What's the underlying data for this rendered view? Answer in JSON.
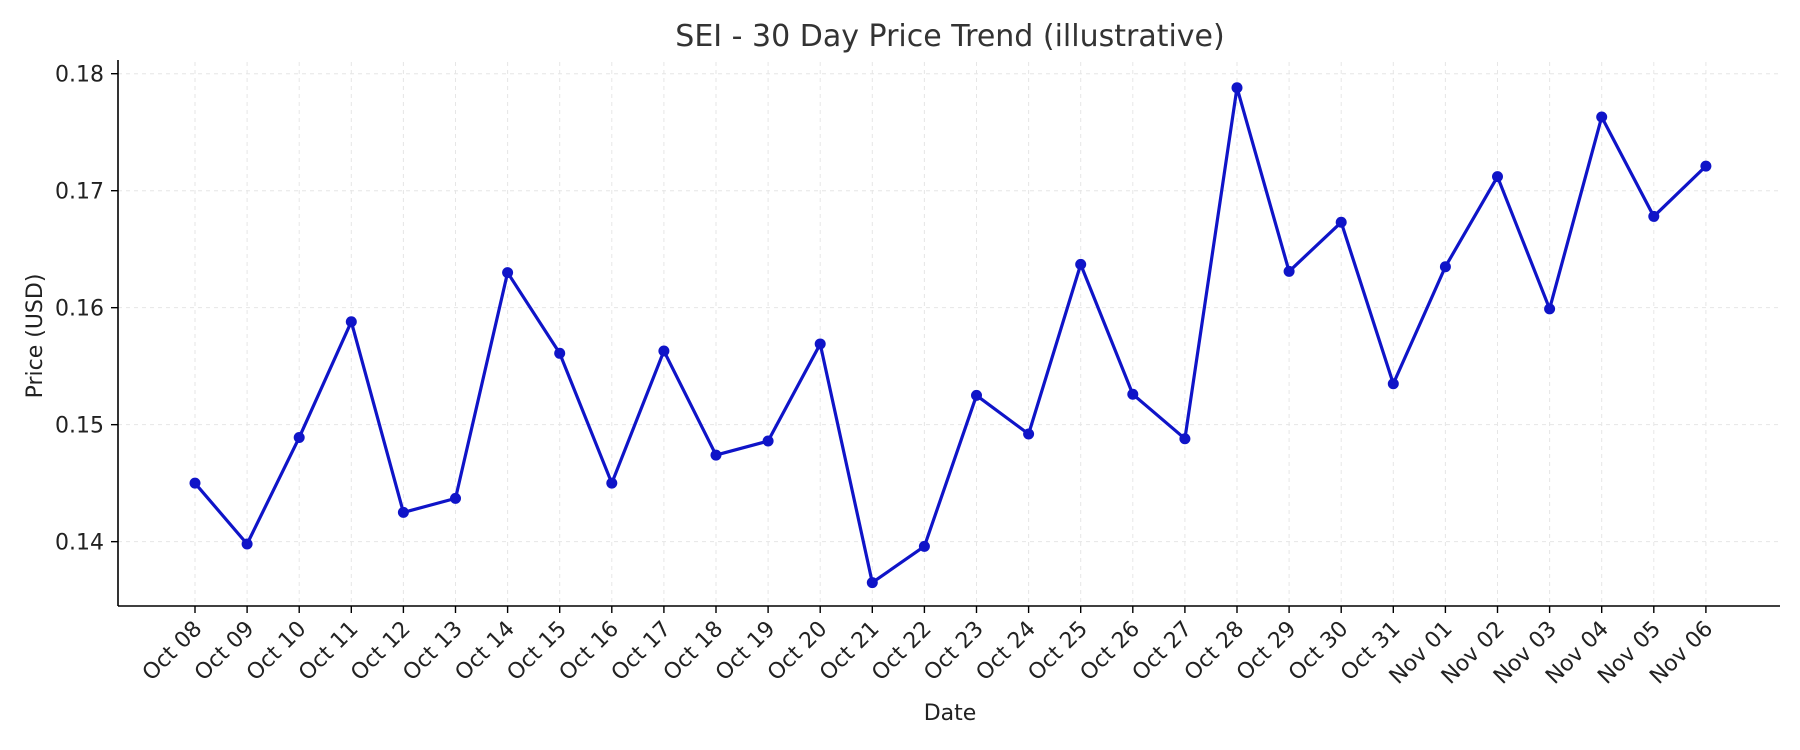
{
  "chart_data": {
    "type": "line",
    "title": "SEI - 30 Day Price Trend (illustrative)",
    "xlabel": "Date",
    "ylabel": "Price (USD)",
    "ylim": [
      0.1345,
      0.181
    ],
    "yticks": [
      0.14,
      0.15,
      0.16,
      0.17,
      0.18
    ],
    "ytick_labels": [
      "0.14",
      "0.15",
      "0.16",
      "0.17",
      "0.18"
    ],
    "grid": true,
    "colors": {
      "line": "#0f14c8",
      "marker": "#0f14c8"
    },
    "categories": [
      "Oct 08",
      "Oct 09",
      "Oct 10",
      "Oct 11",
      "Oct 12",
      "Oct 13",
      "Oct 14",
      "Oct 15",
      "Oct 16",
      "Oct 17",
      "Oct 18",
      "Oct 19",
      "Oct 20",
      "Oct 21",
      "Oct 22",
      "Oct 23",
      "Oct 24",
      "Oct 25",
      "Oct 26",
      "Oct 27",
      "Oct 28",
      "Oct 29",
      "Oct 30",
      "Oct 31",
      "Nov 01",
      "Nov 02",
      "Nov 03",
      "Nov 04",
      "Nov 05",
      "Nov 06"
    ],
    "series": [
      {
        "values": [
          0.145,
          0.1398,
          0.1489,
          0.1588,
          0.1425,
          0.1437,
          0.163,
          0.1561,
          0.145,
          0.1563,
          0.1474,
          0.1486,
          0.1569,
          0.1365,
          0.1396,
          0.1525,
          0.1492,
          0.1637,
          0.1526,
          0.1488,
          0.1788,
          0.1631,
          0.1673,
          0.1535,
          0.1635,
          0.1712,
          0.1599,
          0.1763,
          0.1678,
          0.1721
        ]
      }
    ]
  }
}
